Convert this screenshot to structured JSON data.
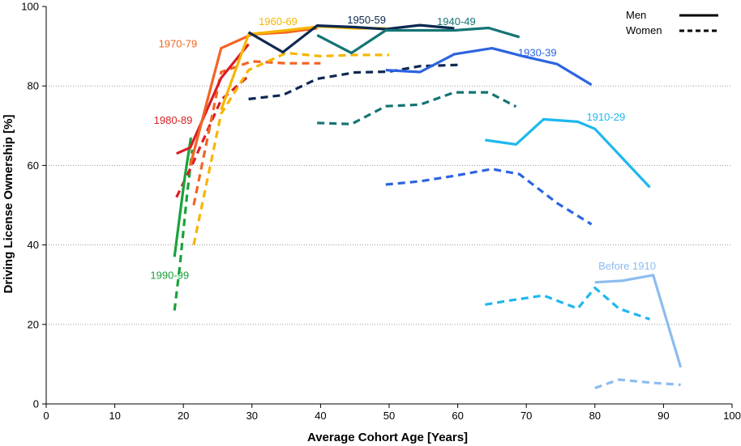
{
  "chart_data": {
    "type": "line",
    "title": "",
    "xlabel": "Average Cohort Age [Years]",
    "ylabel": "Driving License Ownership [%]",
    "xlim": [
      0,
      100
    ],
    "ylim": [
      0,
      100
    ],
    "xticks": [
      0,
      10,
      20,
      30,
      40,
      50,
      60,
      70,
      80,
      90,
      100
    ],
    "yticks": [
      0,
      20,
      40,
      60,
      80,
      100
    ],
    "grid": "horizontal dotted at 20, 40, 60, 80",
    "legend": {
      "position": "top-right",
      "entries": [
        {
          "label": "Men",
          "style": "solid"
        },
        {
          "label": "Women",
          "style": "dashed"
        }
      ]
    },
    "series": [
      {
        "name": "1990-99",
        "group": "Men",
        "color": "#1aa33a",
        "x": [
          18.7,
          20.2,
          21.1
        ],
        "y": [
          37,
          57,
          67
        ],
        "label": {
          "text": "1990-99",
          "at": [
            18,
            32.4
          ],
          "anchor": "middle"
        }
      },
      {
        "name": "1990-99",
        "group": "Women",
        "color": "#1aa33a",
        "x": [
          18.7,
          19.5,
          20.5,
          21.3
        ],
        "y": [
          23.5,
          35,
          52,
          64
        ]
      },
      {
        "name": "1980-89",
        "group": "Men",
        "color": "#dc1e24",
        "x": [
          19,
          21,
          25.5,
          29.5
        ],
        "y": [
          63,
          64.5,
          82,
          90.5
        ],
        "label": {
          "text": "1980-89",
          "at": [
            18.5,
            71.4
          ],
          "anchor": "middle"
        }
      },
      {
        "name": "1980-89",
        "group": "Women",
        "color": "#dc1e24",
        "x": [
          19,
          21.5,
          25.5,
          29.5
        ],
        "y": [
          52,
          61,
          76.5,
          82.5
        ]
      },
      {
        "name": "1970-79",
        "group": "Men",
        "color": "#f26422",
        "x": [
          21,
          25.5,
          30,
          35,
          39.5
        ],
        "y": [
          60,
          89.5,
          93,
          93.5,
          94.5
        ],
        "label": {
          "text": "1970-79",
          "at": [
            19.2,
            90.6
          ],
          "anchor": "middle"
        }
      },
      {
        "name": "1970-79",
        "group": "Women",
        "color": "#f26422",
        "x": [
          21.5,
          25.5,
          30,
          35,
          40
        ],
        "y": [
          50,
          83.5,
          86.2,
          85.7,
          85.7
        ]
      },
      {
        "name": "1960-69",
        "group": "Men",
        "color": "#f7b500",
        "x": [
          25.5,
          29.5,
          35,
          40,
          45,
          49.5
        ],
        "y": [
          74,
          93,
          94,
          95,
          94.5,
          94.5
        ],
        "label": {
          "text": "1960-69",
          "at": [
            33.8,
            96.2
          ],
          "anchor": "middle"
        }
      },
      {
        "name": "1960-69",
        "group": "Women",
        "color": "#f7b500",
        "x": [
          21.5,
          25.5,
          29.5,
          35,
          40,
          45,
          50
        ],
        "y": [
          40,
          73,
          84,
          88.3,
          87.5,
          87.8,
          87.8
        ]
      },
      {
        "name": "1950-59",
        "group": "Men",
        "color": "#0d2850",
        "x": [
          29.5,
          34.5,
          39.5,
          45,
          49.5,
          54.5,
          59.5
        ],
        "y": [
          93.5,
          88.5,
          95.2,
          94.8,
          94.3,
          95.3,
          94.5
        ],
        "label": {
          "text": "1950-59",
          "at": [
            46.7,
            96.6
          ],
          "anchor": "middle"
        }
      },
      {
        "name": "1950-59",
        "group": "Women",
        "color": "#0d2850",
        "x": [
          29.5,
          34.5,
          39.5,
          45,
          50,
          54.5,
          60
        ],
        "y": [
          76.7,
          77.7,
          81.8,
          83.4,
          83.6,
          85,
          85.3
        ]
      },
      {
        "name": "1940-49",
        "group": "Men",
        "color": "#147474",
        "x": [
          39.5,
          44.5,
          49.5,
          54.5,
          59.5,
          64.5,
          69
        ],
        "y": [
          92.8,
          88.3,
          94,
          94,
          94,
          94.6,
          92.3
        ],
        "label": {
          "text": "1940-49",
          "at": [
            59.8,
            96.2
          ],
          "anchor": "middle"
        }
      },
      {
        "name": "1940-49",
        "group": "Women",
        "color": "#147474",
        "x": [
          39.5,
          44.5,
          49.5,
          54.5,
          59.5,
          64.5,
          68.5
        ],
        "y": [
          70.7,
          70.4,
          74.9,
          75.3,
          78.4,
          78.4,
          74.8
        ]
      },
      {
        "name": "1930-39",
        "group": "Men",
        "color": "#2c64e0",
        "x": [
          49.5,
          54.5,
          59.5,
          65,
          69.5,
          74.5,
          79.5
        ],
        "y": [
          84,
          83.5,
          88,
          89.5,
          87.5,
          85.5,
          80.3
        ],
        "label": {
          "text": "1930-39",
          "at": [
            71.6,
            88.4
          ],
          "anchor": "middle"
        }
      },
      {
        "name": "1930-39",
        "group": "Women",
        "color": "#2c64e0",
        "x": [
          49.5,
          54.5,
          59.5,
          65,
          69,
          74.5,
          79.5
        ],
        "y": [
          55.2,
          56,
          57.4,
          59.1,
          57.8,
          50.5,
          45.2
        ]
      },
      {
        "name": "1910-29",
        "group": "Men",
        "color": "#1eb8ee",
        "x": [
          64,
          68.5,
          72.5,
          77.5,
          80,
          88
        ],
        "y": [
          66.4,
          65.3,
          71.6,
          71,
          69.2,
          54.5
        ],
        "label": {
          "text": "1910-29",
          "at": [
            81.6,
            72.2
          ],
          "anchor": "middle"
        }
      },
      {
        "name": "1910-29",
        "group": "Women",
        "color": "#1eb8ee",
        "x": [
          64,
          67.5,
          72.5,
          77.5,
          80,
          83.5,
          88
        ],
        "y": [
          25,
          26,
          27.3,
          24,
          29.2,
          24,
          21.3
        ]
      },
      {
        "name": "Before 1910",
        "group": "Men",
        "color": "#8cbcf0",
        "x": [
          80,
          84,
          88.5,
          92.5
        ],
        "y": [
          30.6,
          31,
          32.4,
          9.2
        ],
        "label": {
          "text": "Before 1910",
          "at": [
            84.7,
            34.7
          ],
          "anchor": "middle"
        }
      },
      {
        "name": "Before 1910",
        "group": "Women",
        "color": "#8cbcf0",
        "x": [
          80,
          83.5,
          88.5,
          92.5
        ],
        "y": [
          4,
          6.1,
          5.3,
          4.8
        ]
      }
    ]
  }
}
